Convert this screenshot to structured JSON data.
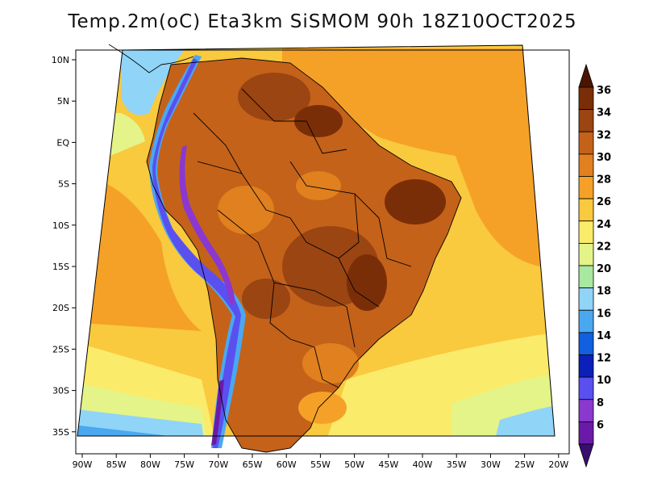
{
  "title": "Temp.2m(oC) Eta3km SiSMOM 90h 18Z10OCT2025",
  "map": {
    "lon_ticks": [
      "90W",
      "85W",
      "80W",
      "75W",
      "70W",
      "65W",
      "60W",
      "55W",
      "50W",
      "45W",
      "40W",
      "35W",
      "30W",
      "25W",
      "20W"
    ],
    "lat_ticks": [
      "10N",
      "5N",
      "EQ",
      "5S",
      "10S",
      "15S",
      "20S",
      "25S",
      "30S",
      "35S"
    ],
    "lon_range": [
      -91,
      -20
    ],
    "lat_range": [
      -38,
      11
    ]
  },
  "colorbar": {
    "labels": [
      "36",
      "34",
      "32",
      "30",
      "28",
      "26",
      "24",
      "22",
      "20",
      "18",
      "16",
      "14",
      "12",
      "10",
      "8",
      "6"
    ],
    "colors": [
      "#4a1500",
      "#7a2e08",
      "#9a4512",
      "#c4621a",
      "#e0801e",
      "#f5a128",
      "#f9c93e",
      "#fbeb6a",
      "#e4f488",
      "#a8e8a0",
      "#90d4f8",
      "#4aa8f0",
      "#1060e0",
      "#0a20b8",
      "#5a50f0",
      "#8a38d0",
      "#6a1aa8",
      "#3a0e70"
    ]
  },
  "chart_data": {
    "type": "heatmap",
    "title": "Temp.2m(oC) Eta3km SiSMOM 90h 18Z10OCT2025",
    "variable": "2 m temperature (oC)",
    "x_axis": "longitude",
    "xlim": [
      -91,
      -20
    ],
    "y_axis": "latitude",
    "ylim": [
      -38,
      11
    ],
    "color_levels": [
      6,
      8,
      10,
      12,
      14,
      16,
      18,
      20,
      22,
      24,
      26,
      28,
      30,
      32,
      34,
      36
    ]
  }
}
